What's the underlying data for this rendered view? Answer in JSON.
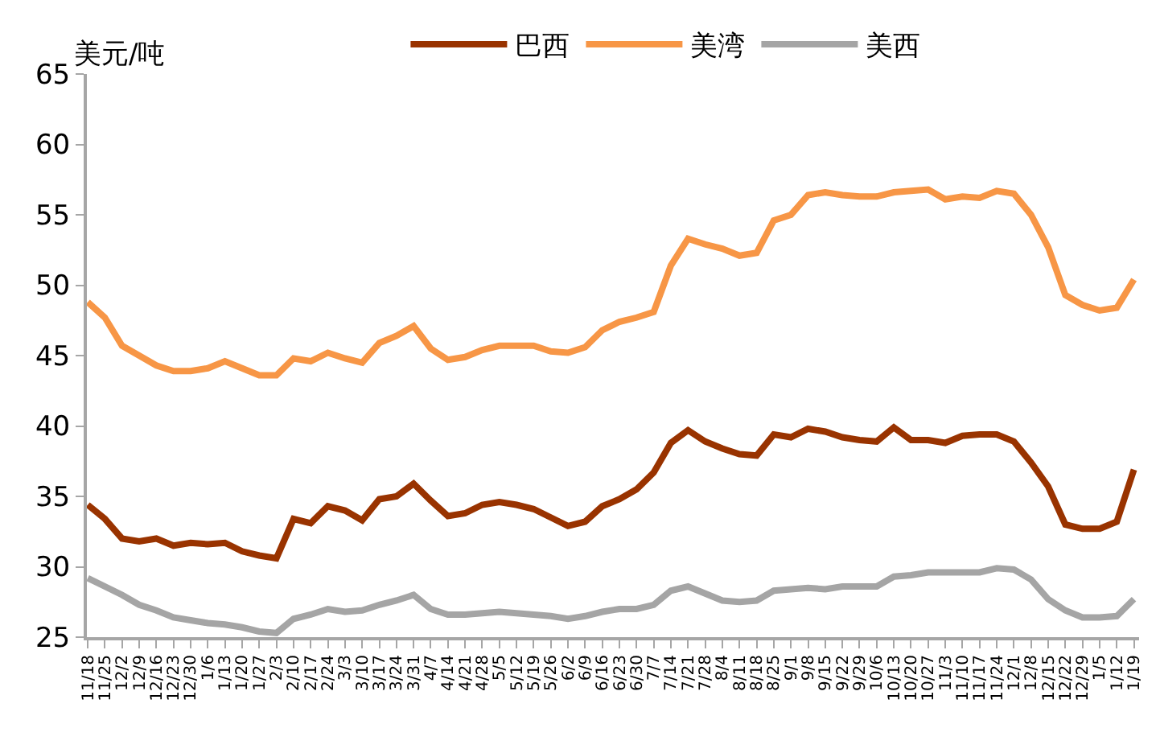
{
  "chart_data": {
    "type": "line",
    "ylabel": "美元/吨",
    "categories": [
      "11/18",
      "11/25",
      "12/2",
      "12/9",
      "12/16",
      "12/23",
      "12/30",
      "1/6",
      "1/13",
      "1/20",
      "1/27",
      "2/3",
      "2/10",
      "2/17",
      "2/24",
      "3/3",
      "3/10",
      "3/17",
      "3/24",
      "3/31",
      "4/7",
      "4/14",
      "4/21",
      "4/28",
      "5/5",
      "5/12",
      "5/19",
      "5/26",
      "6/2",
      "6/9",
      "6/16",
      "6/23",
      "6/30",
      "7/7",
      "7/14",
      "7/21",
      "7/28",
      "8/4",
      "8/11",
      "8/18",
      "8/25",
      "9/1",
      "9/8",
      "9/15",
      "9/22",
      "9/29",
      "10/6",
      "10/13",
      "10/20",
      "10/27",
      "11/3",
      "11/10",
      "11/17",
      "11/24",
      "12/1",
      "12/8",
      "12/15",
      "12/22",
      "12/29",
      "1/5",
      "1/12",
      "1/19"
    ],
    "series": [
      {
        "name": "巴西",
        "color": "#993300",
        "values": [
          34.4,
          33.4,
          32.0,
          31.8,
          32.0,
          31.5,
          31.7,
          31.6,
          31.7,
          31.1,
          30.8,
          30.6,
          33.4,
          33.1,
          34.3,
          34.0,
          33.3,
          34.8,
          35.0,
          35.9,
          34.7,
          33.6,
          33.8,
          34.4,
          34.6,
          34.4,
          34.1,
          33.5,
          32.9,
          33.2,
          34.3,
          34.8,
          35.5,
          36.7,
          38.8,
          39.7,
          38.9,
          38.4,
          38.0,
          37.9,
          39.4,
          39.2,
          39.8,
          39.6,
          39.2,
          39.0,
          38.9,
          39.9,
          39.0,
          39.0,
          38.8,
          39.3,
          39.4,
          39.4,
          38.9,
          37.4,
          35.7,
          33.0,
          32.7,
          32.7,
          33.2,
          36.9
        ]
      },
      {
        "name": "美湾",
        "color": "#f79646",
        "values": [
          48.8,
          47.7,
          45.7,
          45.0,
          44.3,
          43.9,
          43.9,
          44.1,
          44.6,
          44.1,
          43.6,
          43.6,
          44.8,
          44.6,
          45.2,
          44.8,
          44.5,
          45.9,
          46.4,
          47.1,
          45.5,
          44.7,
          44.9,
          45.4,
          45.7,
          45.7,
          45.7,
          45.3,
          45.2,
          45.6,
          46.8,
          47.4,
          47.7,
          48.1,
          51.4,
          53.3,
          52.9,
          52.6,
          52.1,
          52.3,
          54.6,
          55.0,
          56.4,
          56.6,
          56.4,
          56.3,
          56.3,
          56.6,
          56.7,
          56.8,
          56.1,
          56.3,
          56.2,
          56.7,
          56.5,
          55.0,
          52.7,
          49.3,
          48.6,
          48.2,
          48.4,
          50.4
        ]
      },
      {
        "name": "美西",
        "color": "#a5a5a5",
        "values": [
          29.2,
          28.6,
          28.0,
          27.3,
          26.9,
          26.4,
          26.2,
          26.0,
          25.9,
          25.7,
          25.4,
          25.3,
          26.3,
          26.6,
          27.0,
          26.8,
          26.9,
          27.3,
          27.6,
          28.0,
          27.0,
          26.6,
          26.6,
          26.7,
          26.8,
          26.7,
          26.6,
          26.5,
          26.3,
          26.5,
          26.8,
          27.0,
          27.0,
          27.3,
          28.3,
          28.6,
          28.1,
          27.6,
          27.5,
          27.6,
          28.3,
          28.4,
          28.5,
          28.4,
          28.6,
          28.6,
          28.6,
          29.3,
          29.4,
          29.6,
          29.6,
          29.6,
          29.6,
          29.9,
          29.8,
          29.1,
          27.7,
          26.9,
          26.4,
          26.4,
          26.5,
          27.7
        ]
      }
    ],
    "ylim": [
      25,
      65
    ],
    "yticks": [
      25,
      30,
      35,
      40,
      45,
      50,
      55,
      60,
      65
    ],
    "legend": "top",
    "marker": "none",
    "line_style": "solid"
  }
}
